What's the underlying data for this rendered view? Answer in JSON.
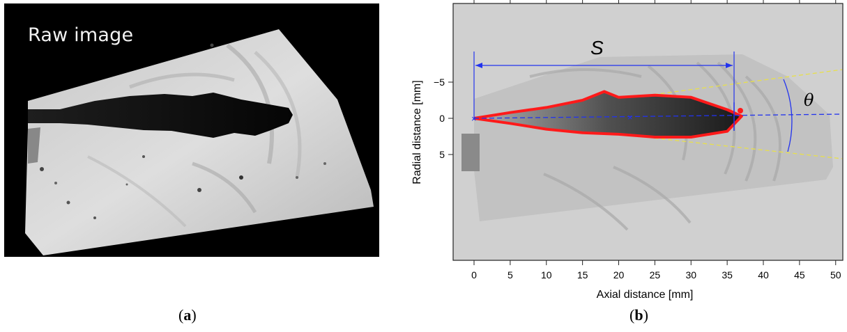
{
  "panel_a": {
    "title": "Raw image"
  },
  "panel_b": {
    "xlabel": "Axial distance [mm]",
    "ylabel": "Radial distance [mm]",
    "x_ticks": [
      "0",
      "5",
      "10",
      "15",
      "20",
      "25",
      "30",
      "35",
      "40",
      "45",
      "50"
    ],
    "y_ticks": [
      "−5",
      "0",
      "5"
    ],
    "label_s": "S",
    "label_theta": "θ",
    "colors": {
      "outline": "#ff1a1a",
      "annotation": "#2233ee",
      "cone": "#e8e04a",
      "background": "#d0d0d0"
    }
  },
  "chart_data": {
    "type": "scatter",
    "xlabel": "Axial distance [mm]",
    "ylabel": "Radial distance [mm]",
    "xlim": [
      -3,
      51
    ],
    "ylim": [
      -15,
      18
    ],
    "x_ticks": [
      0,
      5,
      10,
      15,
      20,
      25,
      30,
      35,
      40,
      45,
      50
    ],
    "y_ticks": [
      -5,
      0,
      5
    ],
    "series": [
      {
        "x": [
          0,
          5,
          10,
          15,
          18,
          20,
          25,
          30,
          35,
          37,
          35,
          30,
          25,
          20,
          15,
          10,
          5,
          0
        ],
        "y": [
          0,
          -0.8,
          -1.5,
          -2.5,
          -3.7,
          -2.9,
          -3.2,
          -2.9,
          -1.2,
          -0.3,
          1.8,
          2.6,
          2.6,
          2.2,
          2.0,
          1.5,
          0.7,
          0
        ]
      }
    ],
    "annotations": [
      "S",
      "θ"
    ]
  },
  "captions": {
    "a": "a",
    "b": "b"
  }
}
